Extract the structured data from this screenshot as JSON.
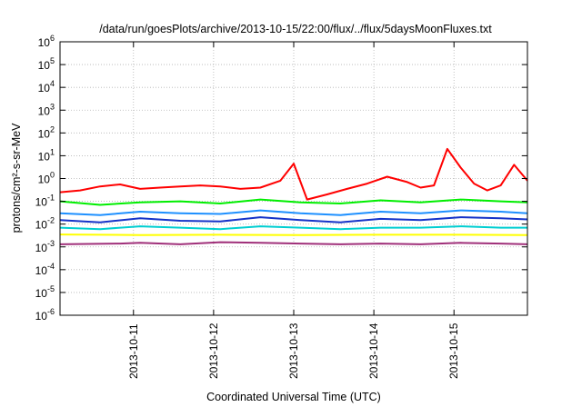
{
  "chart_data": {
    "type": "line",
    "title": "/data/run/goesPlots/archive/2013-10-15/22:00/flux/../flux/5daysMoonFluxes.txt",
    "xlabel": "Coordinated Universal Time (UTC)",
    "ylabel": "protons/cm²-s-sr-MeV",
    "yscale": "log",
    "ylim_exponent": [
      -6,
      6
    ],
    "ytick_exponents": [
      -6,
      -5,
      -4,
      -3,
      -2,
      -1,
      0,
      1,
      2,
      3,
      4,
      5,
      6
    ],
    "xlim": [
      "2013-10-10T02:00",
      "2013-10-15T22:00"
    ],
    "xticks": [
      {
        "t": "2013-10-11T00:00",
        "label": "2013-10-11"
      },
      {
        "t": "2013-10-12T00:00",
        "label": "2013-10-12"
      },
      {
        "t": "2013-10-13T00:00",
        "label": "2013-10-13"
      },
      {
        "t": "2013-10-14T00:00",
        "label": "2013-10-14"
      },
      {
        "t": "2013-10-15T00:00",
        "label": "2013-10-15"
      }
    ],
    "grid": true,
    "legend": "none",
    "series": [
      {
        "color": "#ff0000",
        "x": [
          "2013-10-10T02:00",
          "2013-10-10T08:00",
          "2013-10-10T14:00",
          "2013-10-10T20:00",
          "2013-10-11T02:00",
          "2013-10-11T08:00",
          "2013-10-11T14:00",
          "2013-10-11T20:00",
          "2013-10-12T02:00",
          "2013-10-12T08:00",
          "2013-10-12T14:00",
          "2013-10-12T20:00",
          "2013-10-13T00:00",
          "2013-10-13T04:00",
          "2013-10-13T10:00",
          "2013-10-13T16:00",
          "2013-10-13T22:00",
          "2013-10-14T04:00",
          "2013-10-14T10:00",
          "2013-10-14T14:00",
          "2013-10-14T18:00",
          "2013-10-14T22:00",
          "2013-10-15T02:00",
          "2013-10-15T06:00",
          "2013-10-15T10:00",
          "2013-10-15T14:00",
          "2013-10-15T18:00",
          "2013-10-15T22:00"
        ],
        "y": [
          0.25,
          0.3,
          0.45,
          0.55,
          0.35,
          0.4,
          0.45,
          0.5,
          0.45,
          0.35,
          0.4,
          0.8,
          4.5,
          0.12,
          0.2,
          0.35,
          0.6,
          1.2,
          0.7,
          0.4,
          0.5,
          20,
          3,
          0.6,
          0.3,
          0.5,
          4,
          0.8
        ]
      },
      {
        "color": "#00ee00",
        "x": [
          "2013-10-10T02:00",
          "2013-10-10T14:00",
          "2013-10-11T02:00",
          "2013-10-11T14:00",
          "2013-10-12T02:00",
          "2013-10-12T14:00",
          "2013-10-13T02:00",
          "2013-10-13T14:00",
          "2013-10-14T02:00",
          "2013-10-14T14:00",
          "2013-10-15T02:00",
          "2013-10-15T14:00",
          "2013-10-15T22:00"
        ],
        "y": [
          0.1,
          0.07,
          0.09,
          0.1,
          0.08,
          0.12,
          0.09,
          0.08,
          0.11,
          0.09,
          0.12,
          0.1,
          0.09
        ]
      },
      {
        "color": "#1e90ff",
        "x": [
          "2013-10-10T02:00",
          "2013-10-10T14:00",
          "2013-10-11T02:00",
          "2013-10-11T14:00",
          "2013-10-12T02:00",
          "2013-10-12T14:00",
          "2013-10-13T02:00",
          "2013-10-13T14:00",
          "2013-10-14T02:00",
          "2013-10-14T14:00",
          "2013-10-15T02:00",
          "2013-10-15T14:00",
          "2013-10-15T22:00"
        ],
        "y": [
          0.03,
          0.025,
          0.035,
          0.03,
          0.028,
          0.04,
          0.03,
          0.025,
          0.035,
          0.03,
          0.04,
          0.035,
          0.03
        ]
      },
      {
        "color": "#1533c8",
        "x": [
          "2013-10-10T02:00",
          "2013-10-10T14:00",
          "2013-10-11T02:00",
          "2013-10-11T14:00",
          "2013-10-12T02:00",
          "2013-10-12T14:00",
          "2013-10-13T02:00",
          "2013-10-13T14:00",
          "2013-10-14T02:00",
          "2013-10-14T14:00",
          "2013-10-15T02:00",
          "2013-10-15T14:00",
          "2013-10-15T22:00"
        ],
        "y": [
          0.015,
          0.012,
          0.018,
          0.014,
          0.013,
          0.02,
          0.015,
          0.012,
          0.017,
          0.015,
          0.02,
          0.018,
          0.016
        ]
      },
      {
        "color": "#00ced1",
        "x": [
          "2013-10-10T02:00",
          "2013-10-10T14:00",
          "2013-10-11T02:00",
          "2013-10-11T14:00",
          "2013-10-12T02:00",
          "2013-10-12T14:00",
          "2013-10-13T02:00",
          "2013-10-13T14:00",
          "2013-10-14T02:00",
          "2013-10-14T14:00",
          "2013-10-15T02:00",
          "2013-10-15T14:00",
          "2013-10-15T22:00"
        ],
        "y": [
          0.007,
          0.006,
          0.008,
          0.007,
          0.006,
          0.008,
          0.007,
          0.006,
          0.007,
          0.007,
          0.008,
          0.007,
          0.007
        ]
      },
      {
        "color": "#ffff00",
        "x": [
          "2013-10-10T02:00",
          "2013-10-11T02:00",
          "2013-10-12T02:00",
          "2013-10-13T02:00",
          "2013-10-14T02:00",
          "2013-10-15T02:00",
          "2013-10-15T22:00"
        ],
        "y": [
          0.0035,
          0.0033,
          0.0034,
          0.0033,
          0.0034,
          0.0034,
          0.0033
        ]
      },
      {
        "color": "#a0307a",
        "x": [
          "2013-10-10T02:00",
          "2013-10-10T20:00",
          "2013-10-11T02:00",
          "2013-10-11T14:00",
          "2013-10-12T02:00",
          "2013-10-12T14:00",
          "2013-10-13T02:00",
          "2013-10-13T14:00",
          "2013-10-14T02:00",
          "2013-10-14T14:00",
          "2013-10-15T02:00",
          "2013-10-15T14:00",
          "2013-10-15T22:00"
        ],
        "y": [
          0.0013,
          0.0014,
          0.0015,
          0.0013,
          0.0016,
          0.0015,
          0.0014,
          0.0013,
          0.0014,
          0.0013,
          0.0015,
          0.0014,
          0.0013
        ]
      }
    ]
  }
}
